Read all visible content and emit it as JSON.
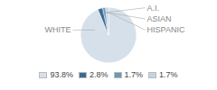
{
  "chart_data": {
    "type": "pie",
    "categories": [
      "WHITE",
      "A.I.",
      "ASIAN",
      "HISPANIC"
    ],
    "values": [
      93.8,
      2.8,
      1.7,
      1.7
    ],
    "value_labels": [
      "93.8%",
      "2.8%",
      "1.7%",
      "1.7%"
    ],
    "colors": [
      "#d6e0ea",
      "#3a6b96",
      "#6b9ab8",
      "#c5d3de"
    ],
    "legend": "bottom"
  }
}
